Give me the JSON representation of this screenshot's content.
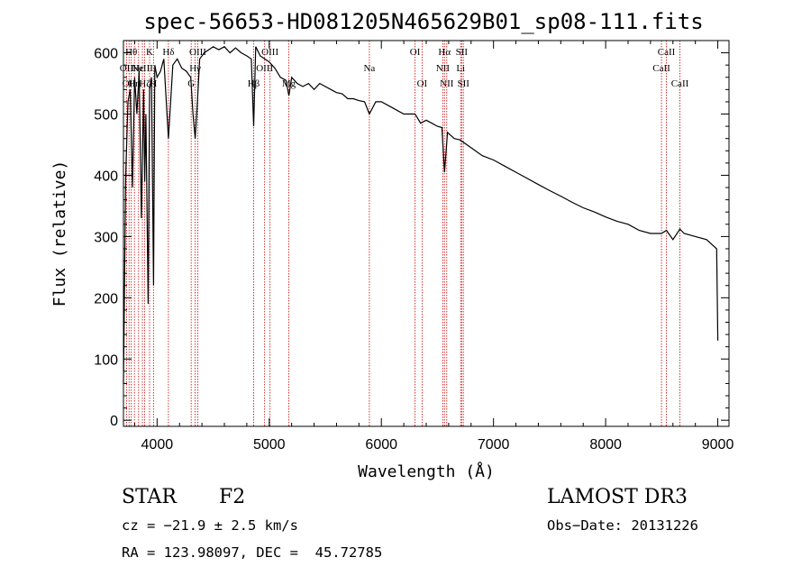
{
  "chart_data": {
    "type": "line",
    "title": "spec-56653-HD081205N465629B01_sp08-111.fits",
    "xlabel": "Wavelength (Å)",
    "ylabel": "Flux (relative)",
    "xlim": [
      3700,
      9100
    ],
    "ylim": [
      -10,
      620
    ],
    "xticks": [
      4000,
      5000,
      6000,
      7000,
      8000,
      9000
    ],
    "yticks": [
      0,
      100,
      200,
      300,
      400,
      500,
      600
    ],
    "grid": false,
    "series": [
      {
        "name": "spectrum",
        "x": [
          3700,
          3720,
          3740,
          3760,
          3780,
          3800,
          3820,
          3840,
          3860,
          3880,
          3890,
          3900,
          3920,
          3933,
          3950,
          3968,
          3980,
          4000,
          4030,
          4060,
          4101,
          4140,
          4180,
          4220,
          4260,
          4300,
          4320,
          4340,
          4360,
          4380,
          4420,
          4460,
          4500,
          4550,
          4600,
          4650,
          4700,
          4750,
          4800,
          4840,
          4861,
          4880,
          4920,
          4960,
          5000,
          5050,
          5100,
          5150,
          5175,
          5200,
          5250,
          5300,
          5350,
          5400,
          5450,
          5500,
          5550,
          5600,
          5650,
          5700,
          5750,
          5800,
          5850,
          5893,
          5950,
          6000,
          6100,
          6200,
          6300,
          6350,
          6400,
          6450,
          6500,
          6540,
          6563,
          6590,
          6650,
          6700,
          6800,
          6900,
          7000,
          7100,
          7200,
          7300,
          7400,
          7500,
          7600,
          7700,
          7800,
          7900,
          8000,
          8100,
          8200,
          8300,
          8400,
          8498,
          8542,
          8600,
          8662,
          8700,
          8800,
          8900,
          8990,
          9000
        ],
        "values": [
          60,
          400,
          520,
          540,
          380,
          560,
          500,
          570,
          330,
          540,
          390,
          500,
          190,
          540,
          560,
          220,
          580,
          560,
          570,
          590,
          460,
          580,
          590,
          575,
          570,
          560,
          500,
          460,
          520,
          590,
          600,
          605,
          610,
          605,
          610,
          600,
          608,
          600,
          595,
          590,
          480,
          610,
          595,
          590,
          585,
          575,
          560,
          555,
          530,
          560,
          550,
          545,
          550,
          540,
          550,
          545,
          540,
          535,
          533,
          525,
          525,
          522,
          520,
          500,
          520,
          520,
          510,
          500,
          500,
          485,
          490,
          485,
          480,
          478,
          405,
          470,
          460,
          458,
          445,
          432,
          425,
          415,
          405,
          395,
          385,
          375,
          366,
          356,
          347,
          340,
          332,
          325,
          320,
          310,
          305,
          305,
          310,
          295,
          312,
          305,
          300,
          295,
          280,
          130
        ]
      }
    ],
    "lines": [
      {
        "wave": 3727,
        "label": "OII",
        "row": 1
      },
      {
        "wave": 3750,
        "label": "OII",
        "row": 2
      },
      {
        "wave": 3770,
        "label": "Hθ",
        "row": 0
      },
      {
        "wave": 3798,
        "label": "Hη",
        "row": 2
      },
      {
        "wave": 3835,
        "label": "Hε",
        "row": 1
      },
      {
        "wave": 3869,
        "label": "NeIII",
        "row": 1
      },
      {
        "wave": 3889,
        "label": "Hζ",
        "row": 2
      },
      {
        "wave": 3933,
        "label": "K",
        "row": 0
      },
      {
        "wave": 3968,
        "label": "H",
        "row": 2
      },
      {
        "wave": 4101,
        "label": "Hδ",
        "row": 0
      },
      {
        "wave": 4304,
        "label": "G",
        "row": 2
      },
      {
        "wave": 4340,
        "label": "Hγ",
        "row": 1
      },
      {
        "wave": 4363,
        "label": "OIII",
        "row": 0
      },
      {
        "wave": 4861,
        "label": "Hβ",
        "row": 2
      },
      {
        "wave": 4959,
        "label": "OIII",
        "row": 1
      },
      {
        "wave": 5007,
        "label": "OIII",
        "row": 0
      },
      {
        "wave": 5175,
        "label": "Mg",
        "row": 2
      },
      {
        "wave": 5893,
        "label": "Na",
        "row": 1
      },
      {
        "wave": 6300,
        "label": "OI",
        "row": 0
      },
      {
        "wave": 6363,
        "label": "OI",
        "row": 2
      },
      {
        "wave": 6548,
        "label": "NII",
        "row": 1
      },
      {
        "wave": 6563,
        "label": "Hα",
        "row": 0
      },
      {
        "wave": 6583,
        "label": "NII",
        "row": 2
      },
      {
        "wave": 6707,
        "label": "Li",
        "row": 1
      },
      {
        "wave": 6716,
        "label": "SII",
        "row": 0
      },
      {
        "wave": 6731,
        "label": "SII",
        "row": 2
      },
      {
        "wave": 8498,
        "label": "CaII",
        "row": 1
      },
      {
        "wave": 8542,
        "label": "CaII",
        "row": 0
      },
      {
        "wave": 8662,
        "label": "CaII",
        "row": 2
      }
    ]
  },
  "info": {
    "object_class": "STAR",
    "subclass": "F2",
    "survey": "LAMOST DR3",
    "redshift": "cz = −21.9 ± 2.5 km/s",
    "obs_date": "Obs−Date: 20131226",
    "coords": "RA = 123.98097, DEC =  45.72785"
  },
  "colors": {
    "spectrum": "#000000",
    "line_marker": "#cc0000",
    "axes": "#000000"
  }
}
